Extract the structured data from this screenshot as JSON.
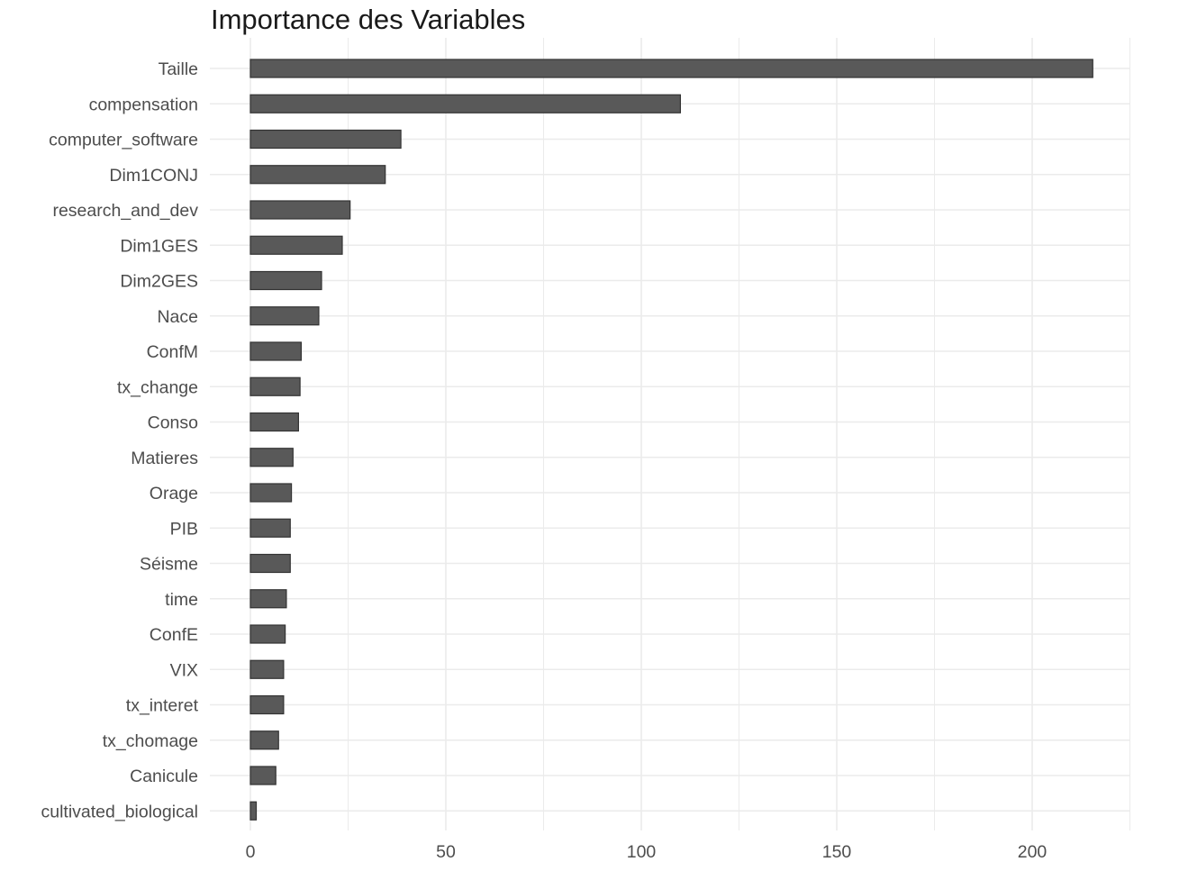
{
  "chart_data": {
    "type": "bar",
    "orientation": "horizontal",
    "title": "Importance des Variables",
    "xlabel": "",
    "ylabel": "",
    "categories": [
      "Taille",
      "compensation",
      "computer_software",
      "Dim1CONJ",
      "research_and_dev",
      "Dim1GES",
      "Dim2GES",
      "Nace",
      "ConfM",
      "tx_change",
      "Conso",
      "Matieres",
      "Orage",
      "PIB",
      "Séisme",
      "time",
      "ConfE",
      "VIX",
      "tx_interet",
      "tx_chomage",
      "Canicule",
      "cultivated_biological"
    ],
    "values": [
      215.5,
      110.0,
      38.5,
      34.5,
      25.5,
      23.5,
      18.2,
      17.5,
      13.0,
      12.7,
      12.3,
      10.9,
      10.5,
      10.2,
      10.2,
      9.2,
      8.9,
      8.5,
      8.5,
      7.2,
      6.5,
      1.5
    ],
    "xlim": [
      0,
      225
    ],
    "xticks": [
      0,
      50,
      100,
      150,
      200
    ],
    "xtick_labels": [
      "0",
      "50",
      "100",
      "150",
      "200"
    ],
    "grid": true,
    "legend": "none",
    "bar_color": "#595959",
    "bar_edge_color": "#333333",
    "grid_color": "#ebebeb"
  }
}
